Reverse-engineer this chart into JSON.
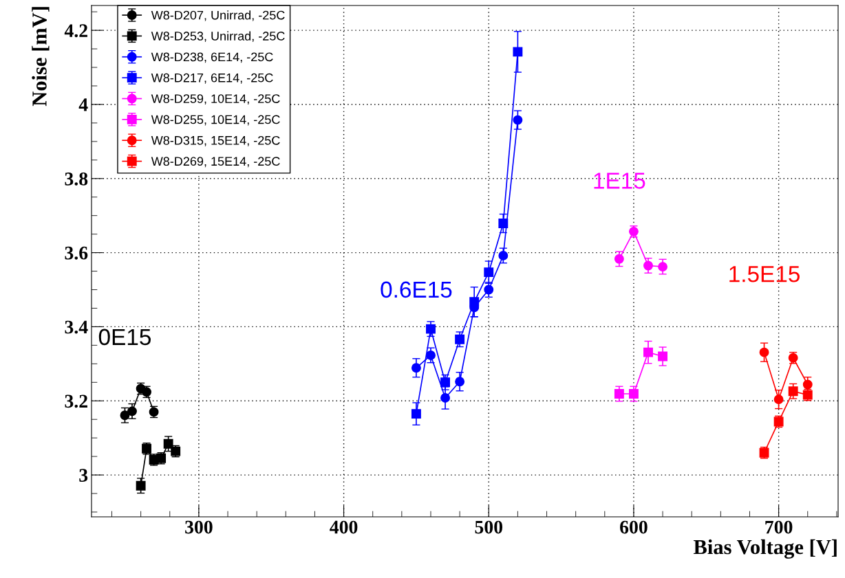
{
  "chart_data": {
    "type": "line",
    "xlabel": "Bias Voltage [V]",
    "ylabel": "Noise [mV]",
    "xlim": [
      226,
      741
    ],
    "ylim": [
      2.887,
      4.267
    ],
    "xticks": [
      300,
      400,
      500,
      600,
      700
    ],
    "yticks": [
      3,
      3.2,
      3.4,
      3.6,
      3.8,
      4,
      4.2
    ],
    "grid": true,
    "legend": "top left",
    "line_style": "solid",
    "series": [
      {
        "name": "W8-D207, Unirrad, -25C",
        "color": "#000000",
        "marker": "circle",
        "x": [
          249,
          254,
          260,
          264,
          269
        ],
        "values": [
          3.161,
          3.172,
          3.233,
          3.224,
          3.17
        ],
        "errors": [
          0.02,
          0.02,
          0.015,
          0.015,
          0.015
        ]
      },
      {
        "name": "W8-D253, Unirrad, -25C",
        "color": "#000000",
        "marker": "square",
        "x": [
          260,
          264,
          269,
          274,
          279,
          284
        ],
        "values": [
          2.971,
          3.071,
          3.041,
          3.045,
          3.084,
          3.064
        ],
        "errors": [
          0.02,
          0.015,
          0.015,
          0.015,
          0.02,
          0.015
        ]
      },
      {
        "name": "W8-D238, 6E14, -25C",
        "color": "#0000ff",
        "marker": "circle",
        "x": [
          450,
          460,
          470,
          480,
          490,
          500,
          510,
          520
        ],
        "values": [
          3.289,
          3.323,
          3.208,
          3.252,
          3.452,
          3.5,
          3.592,
          3.958
        ],
        "errors": [
          0.025,
          0.02,
          0.03,
          0.025,
          0.025,
          0.02,
          0.02,
          0.025
        ]
      },
      {
        "name": "W8-D217, 6E14, -25C",
        "color": "#0000ff",
        "marker": "square",
        "x": [
          450,
          460,
          470,
          480,
          490,
          500,
          510,
          520
        ],
        "values": [
          3.165,
          3.394,
          3.25,
          3.366,
          3.467,
          3.547,
          3.679,
          4.142
        ],
        "errors": [
          0.03,
          0.02,
          0.02,
          0.02,
          0.04,
          0.03,
          0.025,
          0.055
        ]
      },
      {
        "name": "W8-D259, 10E14, -25C",
        "color": "#ff00ff",
        "marker": "circle",
        "x": [
          590,
          600,
          610,
          620
        ],
        "values": [
          3.583,
          3.657,
          3.565,
          3.562
        ],
        "errors": [
          0.02,
          0.015,
          0.02,
          0.02
        ]
      },
      {
        "name": "W8-D255, 10E14, -25C",
        "color": "#ff00ff",
        "marker": "square",
        "x": [
          590,
          600,
          610,
          620
        ],
        "values": [
          3.219,
          3.219,
          3.331,
          3.32
        ],
        "errors": [
          0.02,
          0.02,
          0.03,
          0.025
        ]
      },
      {
        "name": "W8-D315, 15E14, -25C",
        "color": "#ff0000",
        "marker": "circle",
        "x": [
          690,
          700,
          710,
          720
        ],
        "values": [
          3.331,
          3.204,
          3.316,
          3.244
        ],
        "errors": [
          0.025,
          0.025,
          0.015,
          0.02
        ]
      },
      {
        "name": "W8-D269, 15E14, -25C",
        "color": "#ff0000",
        "marker": "square",
        "x": [
          690,
          700,
          710,
          720
        ],
        "values": [
          3.06,
          3.144,
          3.226,
          3.216
        ],
        "errors": [
          0.015,
          0.015,
          0.02,
          0.015
        ]
      }
    ],
    "annotations": [
      "0E15",
      "0.6E15",
      "1E15",
      "1.5E15"
    ]
  }
}
